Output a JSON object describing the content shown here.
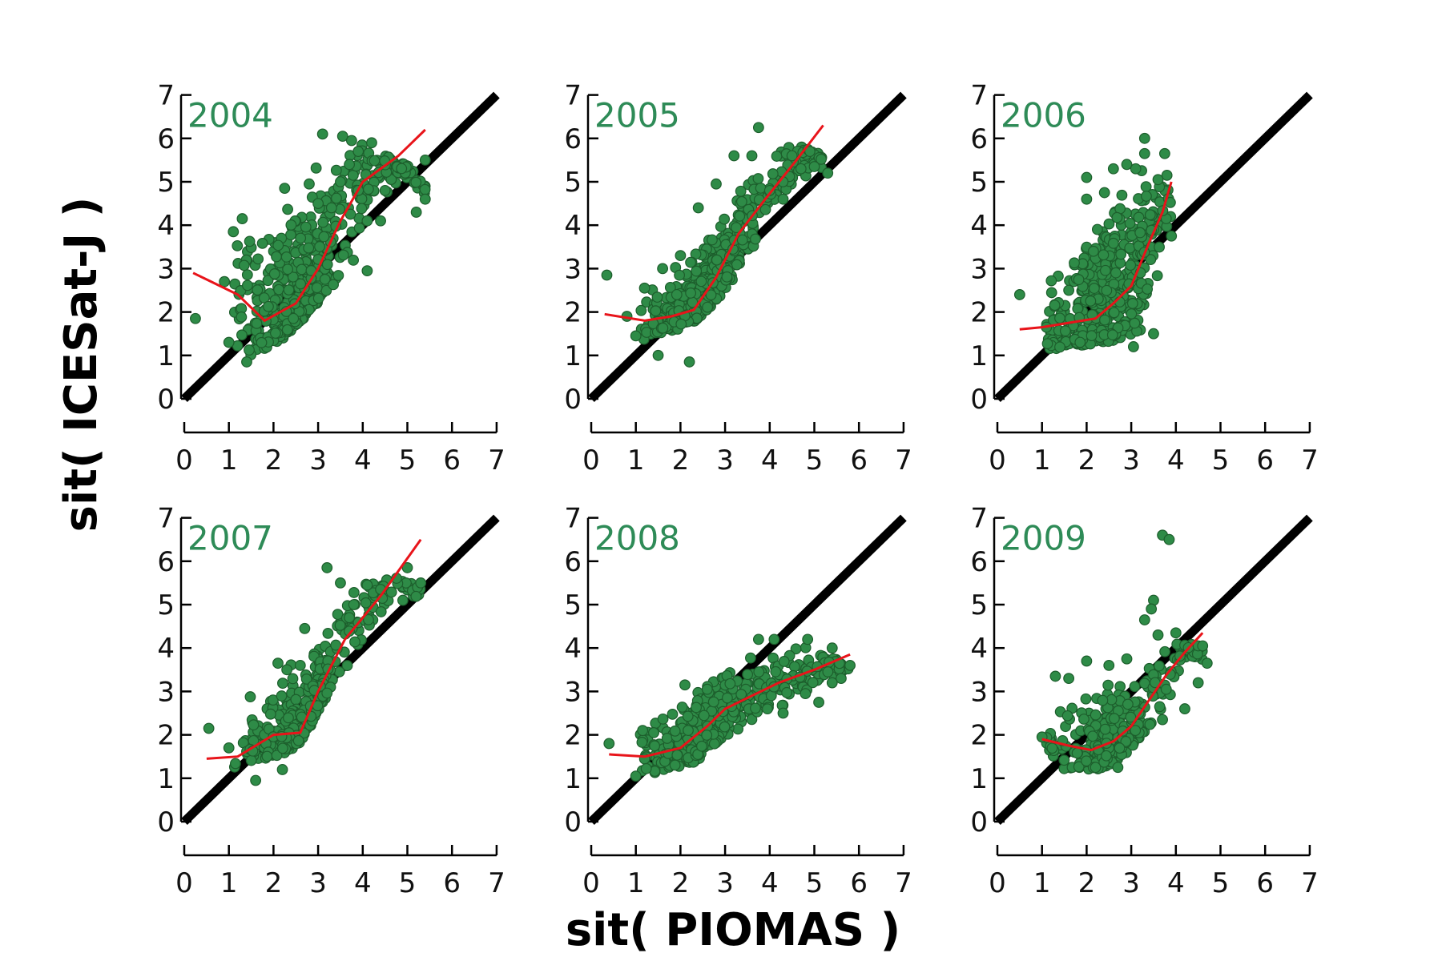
{
  "figure": {
    "xlabel": "sit( PIOMAS )",
    "ylabel": "sit( ICESat-J )"
  },
  "colors": {
    "points": "#2e8b47",
    "point_edge": "#1d5e2c",
    "fit_line": "#e8141a",
    "identity_line": "#000000",
    "title": "#2e8b57"
  },
  "chart_data": [
    {
      "type": "scatter",
      "title": "2004",
      "xlim": [
        0,
        7
      ],
      "ylim": [
        0,
        7
      ],
      "xticks": [
        0,
        1,
        2,
        3,
        4,
        5,
        6,
        7
      ],
      "yticks": [
        0,
        1,
        2,
        3,
        4,
        5,
        6,
        7
      ],
      "identity_line": [
        [
          0,
          0
        ],
        [
          7,
          7
        ]
      ],
      "fit_line": [
        [
          0.2,
          2.9
        ],
        [
          1.2,
          2.4
        ],
        [
          1.8,
          1.8
        ],
        [
          2.5,
          2.2
        ],
        [
          3.0,
          3.0
        ],
        [
          3.5,
          4.1
        ],
        [
          4.0,
          5.0
        ],
        [
          4.8,
          5.6
        ],
        [
          5.4,
          6.2
        ]
      ],
      "spread": {
        "y_low": [
          0.8,
          0.85,
          0.9,
          1.0,
          1.2,
          1.5,
          2.0,
          2.5,
          3.0,
          3.5,
          4.0,
          4.5,
          5.0
        ],
        "y_high": [
          4.2,
          4.2,
          4.3,
          4.5,
          5.0,
          5.6,
          6.1,
          6.2,
          6.0,
          5.8,
          5.6,
          5.4,
          5.0
        ]
      },
      "points": [
        [
          0.25,
          1.85
        ],
        [
          0.9,
          2.7
        ],
        [
          1.1,
          3.85
        ],
        [
          1.3,
          4.15
        ],
        [
          4.1,
          2.95
        ],
        [
          4.5,
          4.8
        ],
        [
          5.2,
          4.3
        ],
        [
          5.4,
          4.6
        ],
        [
          5.4,
          5.5
        ],
        [
          3.1,
          6.1
        ],
        [
          3.55,
          6.05
        ],
        [
          2.25,
          4.85
        ],
        [
          2.8,
          4.95
        ],
        [
          3.0,
          4.5
        ],
        [
          3.3,
          4.4
        ],
        [
          4.2,
          5.9
        ],
        [
          4.4,
          4.1
        ],
        [
          4.1,
          4.1
        ],
        [
          3.9,
          4.8
        ],
        [
          1.0,
          1.3
        ],
        [
          1.4,
          0.85
        ],
        [
          3.75,
          5.95
        ],
        [
          3.5,
          5.0
        ],
        [
          3.7,
          5.4
        ],
        [
          3.9,
          5.7
        ]
      ],
      "n_dense": 520
    },
    {
      "type": "scatter",
      "title": "2005",
      "xlim": [
        0,
        7
      ],
      "ylim": [
        0,
        7
      ],
      "xticks": [
        0,
        1,
        2,
        3,
        4,
        5,
        6,
        7
      ],
      "yticks": [
        0,
        1,
        2,
        3,
        4,
        5,
        6,
        7
      ],
      "identity_line": [
        [
          0,
          0
        ],
        [
          7,
          7
        ]
      ],
      "fit_line": [
        [
          0.3,
          1.95
        ],
        [
          1.2,
          1.8
        ],
        [
          1.8,
          1.9
        ],
        [
          2.3,
          2.05
        ],
        [
          2.8,
          2.8
        ],
        [
          3.3,
          3.8
        ],
        [
          3.9,
          4.6
        ],
        [
          4.6,
          5.5
        ],
        [
          5.2,
          6.3
        ]
      ],
      "spread": {
        "y_low": [
          0.8,
          1.1,
          1.3,
          1.5,
          1.6,
          1.8,
          2.2,
          2.7,
          3.2,
          3.7,
          4.2,
          4.6,
          5.0
        ],
        "y_high": [
          2.3,
          2.5,
          2.8,
          3.2,
          3.5,
          3.8,
          4.3,
          4.8,
          5.2,
          5.6,
          5.8,
          5.8,
          5.6
        ]
      },
      "points": [
        [
          0.35,
          2.85
        ],
        [
          0.8,
          1.9
        ],
        [
          1.0,
          1.45
        ],
        [
          3.75,
          6.25
        ],
        [
          3.2,
          5.6
        ],
        [
          3.6,
          5.6
        ],
        [
          4.5,
          5.6
        ],
        [
          4.9,
          5.7
        ],
        [
          5.0,
          5.35
        ],
        [
          5.3,
          5.2
        ],
        [
          2.8,
          4.95
        ],
        [
          2.4,
          4.4
        ],
        [
          1.6,
          3.0
        ],
        [
          2.0,
          3.3
        ],
        [
          4.3,
          4.6
        ],
        [
          2.2,
          0.85
        ],
        [
          1.5,
          1.0
        ],
        [
          4.0,
          4.8
        ],
        [
          4.7,
          5.3
        ]
      ],
      "n_dense": 520
    },
    {
      "type": "scatter",
      "title": "2006",
      "xlim": [
        0,
        7
      ],
      "ylim": [
        0,
        7
      ],
      "xticks": [
        0,
        1,
        2,
        3,
        4,
        5,
        6,
        7
      ],
      "yticks": [
        0,
        1,
        2,
        3,
        4,
        5,
        6,
        7
      ],
      "identity_line": [
        [
          0,
          0
        ],
        [
          7,
          7
        ]
      ],
      "fit_line": [
        [
          0.5,
          1.6
        ],
        [
          1.0,
          1.65
        ],
        [
          1.6,
          1.75
        ],
        [
          2.2,
          1.85
        ],
        [
          2.6,
          2.2
        ],
        [
          3.0,
          2.6
        ],
        [
          3.4,
          3.6
        ],
        [
          3.7,
          4.3
        ],
        [
          3.9,
          5.0
        ]
      ],
      "spread": {
        "y_low": [
          0.9,
          0.9,
          1.0,
          1.1,
          1.2,
          1.2,
          1.3,
          1.3,
          1.4,
          1.5,
          1.6,
          2.0,
          2.5
        ],
        "y_high": [
          2.2,
          2.6,
          3.0,
          3.5,
          4.0,
          4.8,
          5.3,
          5.4,
          5.4,
          5.4,
          5.2,
          5.0,
          4.8
        ]
      },
      "points": [
        [
          0.5,
          2.4
        ],
        [
          1.1,
          1.65
        ],
        [
          1.6,
          2.5
        ],
        [
          2.0,
          5.1
        ],
        [
          2.0,
          4.6
        ],
        [
          2.6,
          5.3
        ],
        [
          2.9,
          5.4
        ],
        [
          3.1,
          5.3
        ],
        [
          3.3,
          6.0
        ],
        [
          3.3,
          5.65
        ],
        [
          3.75,
          5.65
        ],
        [
          3.8,
          5.15
        ],
        [
          3.9,
          3.75
        ],
        [
          3.5,
          1.5
        ],
        [
          3.05,
          1.2
        ],
        [
          2.4,
          4.75
        ],
        [
          3.6,
          5.05
        ]
      ],
      "n_dense": 420
    },
    {
      "type": "scatter",
      "title": "2007",
      "xlim": [
        0,
        7
      ],
      "ylim": [
        0,
        7
      ],
      "xticks": [
        0,
        1,
        2,
        3,
        4,
        5,
        6,
        7
      ],
      "yticks": [
        0,
        1,
        2,
        3,
        4,
        5,
        6,
        7
      ],
      "identity_line": [
        [
          0,
          0
        ],
        [
          7,
          7
        ]
      ],
      "fit_line": [
        [
          0.5,
          1.45
        ],
        [
          1.2,
          1.5
        ],
        [
          1.6,
          1.75
        ],
        [
          2.0,
          2.0
        ],
        [
          2.6,
          2.05
        ],
        [
          3.0,
          3.0
        ],
        [
          3.6,
          4.2
        ],
        [
          4.4,
          5.2
        ],
        [
          5.3,
          6.5
        ]
      ],
      "spread": {
        "y_low": [
          1.0,
          1.0,
          1.2,
          1.3,
          1.5,
          1.7,
          2.3,
          3.0,
          3.6,
          4.2,
          4.7,
          5.0,
          5.3
        ],
        "y_high": [
          2.8,
          3.0,
          3.2,
          3.5,
          3.8,
          4.2,
          4.6,
          5.0,
          5.5,
          5.8,
          5.8,
          5.6,
          5.4
        ]
      },
      "points": [
        [
          0.55,
          2.15
        ],
        [
          1.0,
          1.7
        ],
        [
          3.2,
          5.85
        ],
        [
          3.5,
          5.5
        ],
        [
          3.8,
          5.0
        ],
        [
          4.1,
          5.45
        ],
        [
          4.4,
          5.35
        ],
        [
          4.9,
          5.1
        ],
        [
          5.0,
          5.85
        ],
        [
          5.3,
          5.5
        ],
        [
          2.1,
          3.65
        ],
        [
          2.6,
          3.6
        ],
        [
          2.7,
          4.45
        ],
        [
          2.3,
          3.5
        ],
        [
          1.6,
          0.95
        ],
        [
          2.2,
          1.2
        ],
        [
          3.7,
          4.7
        ]
      ],
      "n_dense": 380
    },
    {
      "type": "scatter",
      "title": "2008",
      "xlim": [
        0,
        7
      ],
      "ylim": [
        0,
        7
      ],
      "xticks": [
        0,
        1,
        2,
        3,
        4,
        5,
        6,
        7
      ],
      "yticks": [
        0,
        1,
        2,
        3,
        4,
        5,
        6,
        7
      ],
      "identity_line": [
        [
          0,
          0
        ],
        [
          7,
          7
        ]
      ],
      "fit_line": [
        [
          0.4,
          1.55
        ],
        [
          1.2,
          1.5
        ],
        [
          2.0,
          1.7
        ],
        [
          2.6,
          2.2
        ],
        [
          3.0,
          2.6
        ],
        [
          3.6,
          2.9
        ],
        [
          4.2,
          3.2
        ],
        [
          5.0,
          3.5
        ],
        [
          5.8,
          3.85
        ]
      ],
      "spread": {
        "y_low": [
          1.0,
          1.0,
          1.1,
          1.2,
          1.3,
          1.6,
          2.0,
          2.3,
          2.6,
          2.7,
          2.9,
          3.0,
          3.1
        ],
        "y_high": [
          2.0,
          2.3,
          2.7,
          3.0,
          3.2,
          3.4,
          3.6,
          3.8,
          4.0,
          4.2,
          4.0,
          3.8,
          3.6
        ]
      },
      "points": [
        [
          0.4,
          1.8
        ],
        [
          3.75,
          4.2
        ],
        [
          4.1,
          4.2
        ],
        [
          4.85,
          4.2
        ],
        [
          5.4,
          4.0
        ],
        [
          5.8,
          3.6
        ],
        [
          5.6,
          3.3
        ],
        [
          5.4,
          3.2
        ],
        [
          5.1,
          2.75
        ],
        [
          4.8,
          2.95
        ],
        [
          4.3,
          2.5
        ],
        [
          2.1,
          3.15
        ],
        [
          2.6,
          3.05
        ],
        [
          1.0,
          1.05
        ]
      ],
      "n_dense": 460
    },
    {
      "type": "scatter",
      "title": "2009",
      "xlim": [
        0,
        7
      ],
      "ylim": [
        0,
        7
      ],
      "xticks": [
        0,
        1,
        2,
        3,
        4,
        5,
        6,
        7
      ],
      "yticks": [
        0,
        1,
        2,
        3,
        4,
        5,
        6,
        7
      ],
      "identity_line": [
        [
          0,
          0
        ],
        [
          7,
          7
        ]
      ],
      "fit_line": [
        [
          1.0,
          1.9
        ],
        [
          1.6,
          1.75
        ],
        [
          2.1,
          1.65
        ],
        [
          2.6,
          1.85
        ],
        [
          3.0,
          2.2
        ],
        [
          3.4,
          2.8
        ],
        [
          3.8,
          3.4
        ],
        [
          4.2,
          3.9
        ],
        [
          4.6,
          4.35
        ]
      ],
      "spread": {
        "y_low": [
          1.2,
          1.2,
          1.2,
          1.2,
          1.2,
          1.3,
          1.5,
          1.8,
          2.2,
          2.6,
          3.0,
          3.3,
          3.5
        ],
        "y_high": [
          2.0,
          2.4,
          3.0,
          3.3,
          3.5,
          3.6,
          3.6,
          3.8,
          4.0,
          4.2,
          4.2,
          4.1,
          4.0
        ]
      },
      "points": [
        [
          3.7,
          6.6
        ],
        [
          3.85,
          6.5
        ],
        [
          3.5,
          5.1
        ],
        [
          3.45,
          4.9
        ],
        [
          3.3,
          4.65
        ],
        [
          3.6,
          4.3
        ],
        [
          4.0,
          4.35
        ],
        [
          4.5,
          4.05
        ],
        [
          4.6,
          4.05
        ],
        [
          4.5,
          3.2
        ],
        [
          4.7,
          3.65
        ],
        [
          4.2,
          2.6
        ],
        [
          1.3,
          3.35
        ],
        [
          1.6,
          3.3
        ],
        [
          2.0,
          3.7
        ],
        [
          2.5,
          3.6
        ],
        [
          2.9,
          3.75
        ],
        [
          3.7,
          2.35
        ],
        [
          2.2,
          1.25
        ],
        [
          2.7,
          1.25
        ],
        [
          1.0,
          1.95
        ]
      ],
      "n_dense": 330
    }
  ]
}
